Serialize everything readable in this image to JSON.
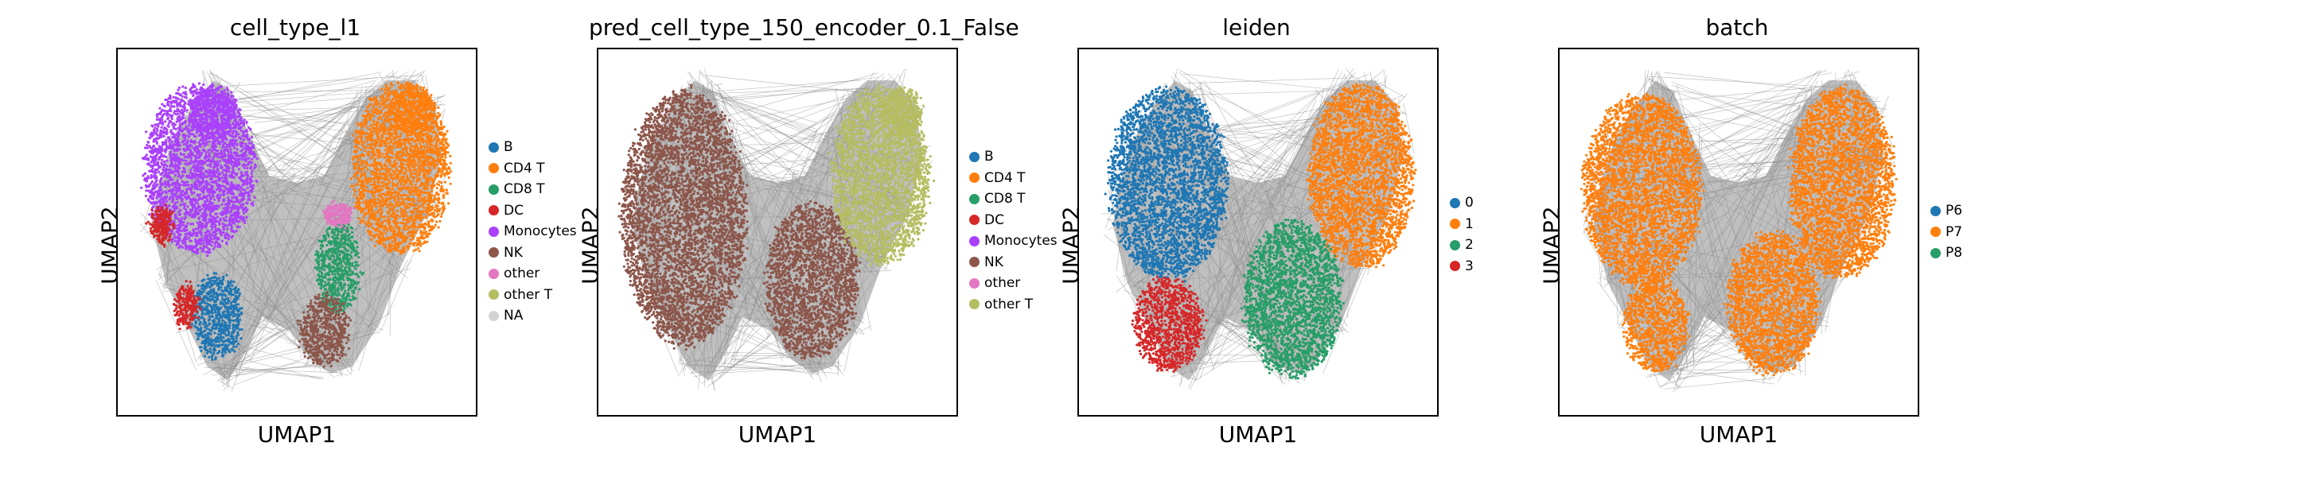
{
  "chart_data": [
    {
      "type": "scatter",
      "title": "cell_type_l1",
      "xlabel": "UMAP1",
      "ylabel": "UMAP2",
      "legend_placement": "right",
      "legend": [
        {
          "label": "B",
          "color": "#1f77b4"
        },
        {
          "label": "CD4 T",
          "color": "#ff7f0e"
        },
        {
          "label": "CD8 T",
          "color": "#279e68"
        },
        {
          "label": "DC",
          "color": "#d62728"
        },
        {
          "label": "Monocytes",
          "color": "#aa40fc"
        },
        {
          "label": "NK",
          "color": "#8c564b"
        },
        {
          "label": "other",
          "color": "#e377c2"
        },
        {
          "label": "other T",
          "color": "#b5bd61"
        },
        {
          "label": "NA",
          "color": "#d3d3d3"
        }
      ],
      "clusters": [
        {
          "label": "Monocytes",
          "color": "#aa40fc",
          "cx": 0.22,
          "cy": 0.68,
          "rx": 0.16,
          "ry": 0.24
        },
        {
          "label": "Monocytes",
          "color": "#aa40fc",
          "cx": 0.26,
          "cy": 0.84,
          "rx": 0.07,
          "ry": 0.07
        },
        {
          "label": "CD4 T",
          "color": "#ff7f0e",
          "cx": 0.8,
          "cy": 0.68,
          "rx": 0.14,
          "ry": 0.24
        },
        {
          "label": "CD4 T",
          "color": "#ff7f0e",
          "cx": 0.84,
          "cy": 0.84,
          "rx": 0.06,
          "ry": 0.07
        },
        {
          "label": "B",
          "color": "#1f77b4",
          "cx": 0.27,
          "cy": 0.26,
          "rx": 0.07,
          "ry": 0.12
        },
        {
          "label": "DC",
          "color": "#d62728",
          "cx": 0.11,
          "cy": 0.52,
          "rx": 0.03,
          "ry": 0.05
        },
        {
          "label": "DC",
          "color": "#d62728",
          "cx": 0.18,
          "cy": 0.29,
          "rx": 0.03,
          "ry": 0.06
        },
        {
          "label": "CD8 T",
          "color": "#279e68",
          "cx": 0.62,
          "cy": 0.4,
          "rx": 0.06,
          "ry": 0.13
        },
        {
          "label": "NK",
          "color": "#8c564b",
          "cx": 0.58,
          "cy": 0.22,
          "rx": 0.07,
          "ry": 0.1
        },
        {
          "label": "other",
          "color": "#e377c2",
          "cx": 0.62,
          "cy": 0.55,
          "rx": 0.04,
          "ry": 0.03
        }
      ]
    },
    {
      "type": "scatter",
      "title": "pred_cell_type_150_encoder_0.1_False",
      "xlabel": "UMAP1",
      "ylabel": "UMAP2",
      "legend_placement": "right",
      "legend": [
        {
          "label": "B",
          "color": "#1f77b4"
        },
        {
          "label": "CD4 T",
          "color": "#ff7f0e"
        },
        {
          "label": "CD8 T",
          "color": "#279e68"
        },
        {
          "label": "DC",
          "color": "#d62728"
        },
        {
          "label": "Monocytes",
          "color": "#aa40fc"
        },
        {
          "label": "NK",
          "color": "#8c564b"
        },
        {
          "label": "other",
          "color": "#e377c2"
        },
        {
          "label": "other T",
          "color": "#b5bd61"
        }
      ],
      "clusters": [
        {
          "label": "NK",
          "color": "#8c564b",
          "cx": 0.23,
          "cy": 0.54,
          "rx": 0.18,
          "ry": 0.36
        },
        {
          "label": "NK",
          "color": "#8c564b",
          "cx": 0.6,
          "cy": 0.36,
          "rx": 0.13,
          "ry": 0.22
        },
        {
          "label": "other T",
          "color": "#b5bd61",
          "cx": 0.8,
          "cy": 0.66,
          "rx": 0.14,
          "ry": 0.25
        },
        {
          "label": "other T",
          "color": "#b5bd61",
          "cx": 0.86,
          "cy": 0.84,
          "rx": 0.06,
          "ry": 0.07
        }
      ]
    },
    {
      "type": "scatter",
      "title": "leiden",
      "xlabel": "UMAP1",
      "ylabel": "UMAP2",
      "legend_placement": "right",
      "legend": [
        {
          "label": "0",
          "color": "#1f77b4"
        },
        {
          "label": "1",
          "color": "#ff7f0e"
        },
        {
          "label": "2",
          "color": "#279e68"
        },
        {
          "label": "3",
          "color": "#d62728"
        }
      ],
      "clusters": [
        {
          "label": "0",
          "color": "#1f77b4",
          "cx": 0.24,
          "cy": 0.64,
          "rx": 0.17,
          "ry": 0.27
        },
        {
          "label": "1",
          "color": "#ff7f0e",
          "cx": 0.8,
          "cy": 0.66,
          "rx": 0.15,
          "ry": 0.26
        },
        {
          "label": "2",
          "color": "#279e68",
          "cx": 0.6,
          "cy": 0.31,
          "rx": 0.14,
          "ry": 0.22
        },
        {
          "label": "3",
          "color": "#d62728",
          "cx": 0.24,
          "cy": 0.24,
          "rx": 0.1,
          "ry": 0.13
        }
      ]
    },
    {
      "type": "scatter",
      "title": "batch",
      "xlabel": "UMAP1",
      "ylabel": "UMAP2",
      "legend_placement": "right",
      "legend": [
        {
          "label": "P6",
          "color": "#1f77b4"
        },
        {
          "label": "P7",
          "color": "#ff7f0e"
        },
        {
          "label": "P8",
          "color": "#279e68"
        }
      ],
      "clusters": [
        {
          "label": "P7",
          "color": "#ff7f0e",
          "cx": 0.22,
          "cy": 0.62,
          "rx": 0.17,
          "ry": 0.27
        },
        {
          "label": "P7",
          "color": "#ff7f0e",
          "cx": 0.8,
          "cy": 0.64,
          "rx": 0.15,
          "ry": 0.27
        },
        {
          "label": "P7",
          "color": "#ff7f0e",
          "cx": 0.6,
          "cy": 0.3,
          "rx": 0.13,
          "ry": 0.2
        },
        {
          "label": "P7",
          "color": "#ff7f0e",
          "cx": 0.26,
          "cy": 0.24,
          "rx": 0.09,
          "ry": 0.13
        }
      ]
    }
  ]
}
